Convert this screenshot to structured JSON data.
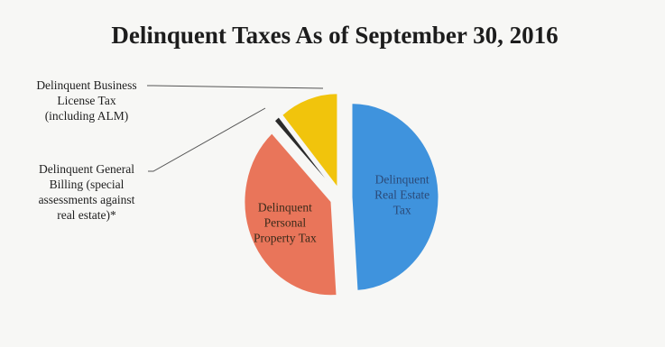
{
  "chart_data": {
    "type": "pie",
    "title": "Delinquent Taxes As of September 30, 2016",
    "exploded": true,
    "grid": false,
    "legend": "none",
    "slices": [
      {
        "label": "Delinquent Real Estate Tax",
        "lines": [
          "Delinquent",
          "Real Estate",
          "Tax"
        ],
        "value": 49,
        "color": "#3f93dd",
        "label_color": "#2b4a78",
        "label_position": "inside"
      },
      {
        "label": "Delinquent Personal Property Tax",
        "lines": [
          "Delinquent",
          "Personal",
          "Property Tax"
        ],
        "value": 39,
        "color": "#e9755a",
        "label_color": "#3a2a1a",
        "label_position": "inside"
      },
      {
        "label": "Delinquent General Billing (special assessments against real estate)*",
        "lines": [
          "Delinquent General",
          "Billing (special",
          "assessments against",
          "real estate)*"
        ],
        "value": 1,
        "color": "#2b2b2b",
        "label_position": "callout-left"
      },
      {
        "label": "Delinquent Business License Tax (including ALM)",
        "lines": [
          "Delinquent Business",
          "License Tax",
          "(including ALM)"
        ],
        "value": 11,
        "color": "#f1c40c",
        "label_position": "callout-left"
      }
    ]
  }
}
